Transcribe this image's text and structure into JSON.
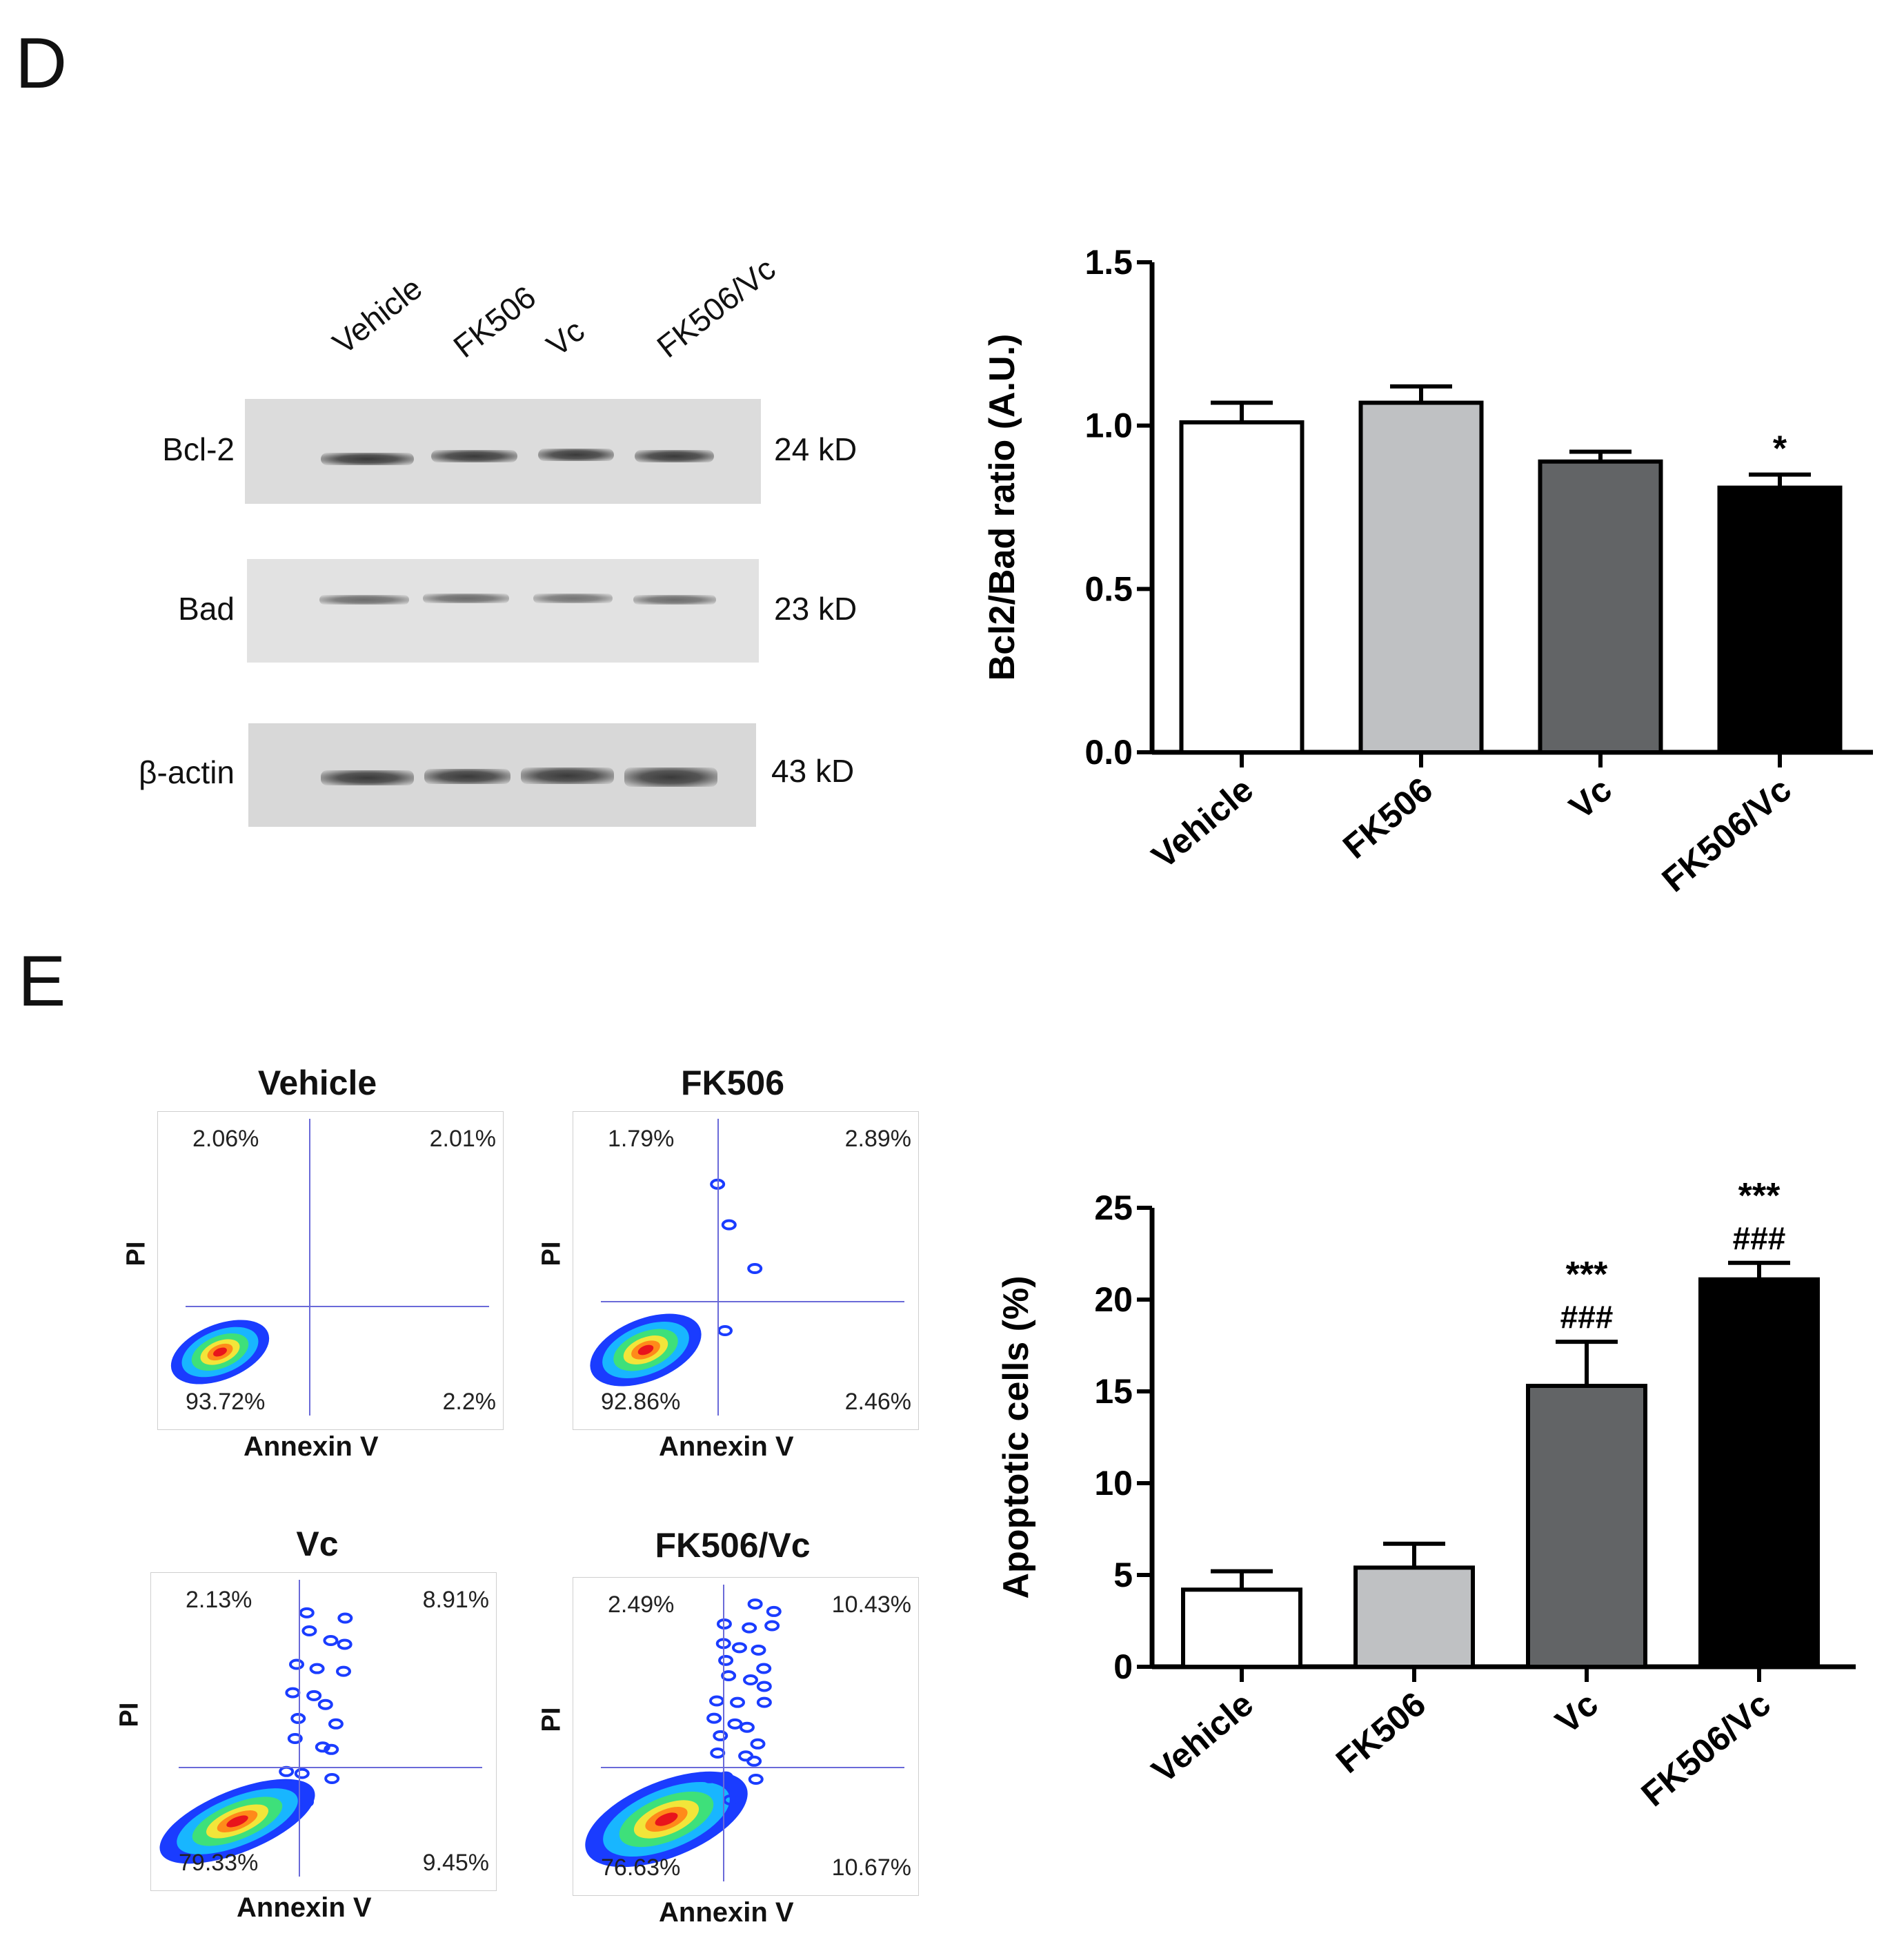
{
  "panels": {
    "D": "D",
    "E": "E"
  },
  "western_blot": {
    "lanes": [
      "Vehicle",
      "FK506",
      "Vc",
      "FK506/Vc"
    ],
    "rows": [
      {
        "label": "Bcl-2",
        "kd": "24 kD"
      },
      {
        "label": "Bad",
        "kd": "23 kD"
      },
      {
        "label": "β-actin",
        "kd": "43 kD"
      }
    ]
  },
  "flow": {
    "x_label": "Annexin V",
    "y_label": "PI",
    "plots": [
      {
        "title": "Vehicle",
        "ul": "2.06%",
        "ur": "2.01%",
        "ll": "93.72%",
        "lr": "2.2%"
      },
      {
        "title": "FK506",
        "ul": "1.79%",
        "ur": "2.89%",
        "ll": "92.86%",
        "lr": "2.46%"
      },
      {
        "title": "Vc",
        "ul": "2.13%",
        "ur": "8.91%",
        "ll": "79.33%",
        "lr": "9.45%"
      },
      {
        "title": "FK506/Vc",
        "ul": "2.49%",
        "ur": "10.43%",
        "ll": "76.63%",
        "lr": "10.67%"
      }
    ]
  },
  "chart_data": [
    {
      "type": "bar",
      "title": "",
      "xlabel": "",
      "ylabel": "Bcl2/Bad ratio (A.U.)",
      "categories": [
        "Vehicle",
        "FK506",
        "Vc",
        "FK506/Vc"
      ],
      "values": [
        1.01,
        1.07,
        0.89,
        0.81
      ],
      "errors": [
        0.06,
        0.05,
        0.03,
        0.04
      ],
      "annotations": [
        "",
        "",
        "",
        "*"
      ],
      "annotations2": [
        "",
        "",
        "",
        ""
      ],
      "ylim": [
        0,
        1.5
      ],
      "yticks": [
        "0.0",
        "0.5",
        "1.0",
        "1.5"
      ],
      "ytick_values": [
        0,
        0.5,
        1.0,
        1.5
      ],
      "colors": [
        "#ffffff",
        "#bfc1c3",
        "#626466",
        "#000000"
      ],
      "grid": false
    },
    {
      "type": "bar",
      "title": "",
      "xlabel": "",
      "ylabel": "Apoptotic cells (%)",
      "categories": [
        "Vehicle",
        "FK506",
        "Vc",
        "FK506/Vc"
      ],
      "values": [
        4.2,
        5.4,
        15.3,
        21.1
      ],
      "errors": [
        1.0,
        1.3,
        2.4,
        0.9
      ],
      "annotations": [
        "",
        "",
        "***",
        "***"
      ],
      "annotations2": [
        "",
        "",
        "###",
        "###"
      ],
      "ylim": [
        0,
        25
      ],
      "yticks": [
        "0",
        "5",
        "10",
        "15",
        "20",
        "25"
      ],
      "ytick_values": [
        0,
        5,
        10,
        15,
        20,
        25
      ],
      "colors": [
        "#ffffff",
        "#bfc1c3",
        "#626466",
        "#000000"
      ],
      "grid": false
    }
  ]
}
